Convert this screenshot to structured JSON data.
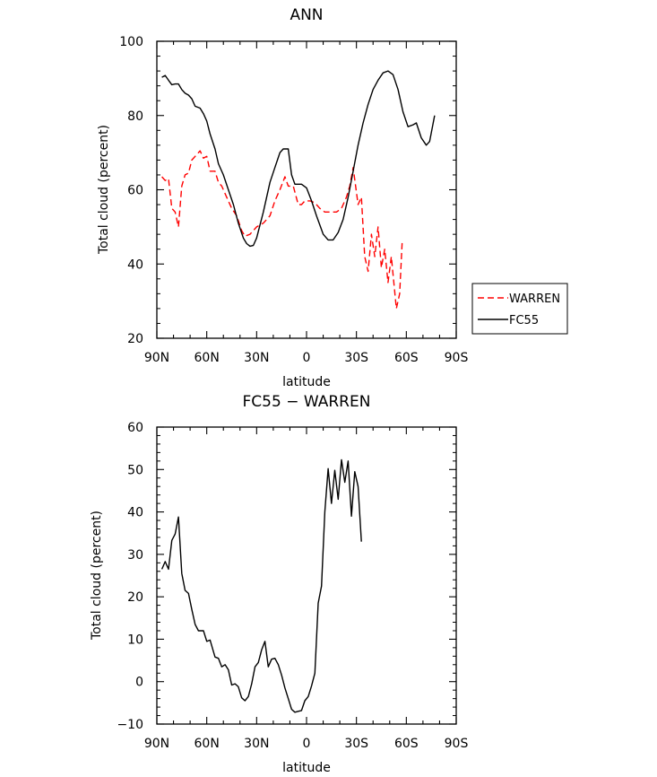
{
  "chart_data": [
    {
      "type": "line",
      "title": "ANN",
      "xlabel": "latitude",
      "ylabel": "Total cloud (percent)",
      "xlim": [
        90,
        -90
      ],
      "ylim": [
        20,
        100
      ],
      "x_tick_values": [
        90,
        60,
        30,
        0,
        -30,
        -60,
        -90
      ],
      "x_tick_labels": [
        "90N",
        "60N",
        "30N",
        "0",
        "30S",
        "60S",
        "90S"
      ],
      "y_tick_values": [
        20,
        40,
        60,
        80,
        100
      ],
      "y_tick_labels": [
        "20",
        "40",
        "60",
        "80",
        "100"
      ],
      "legend": "outside-right",
      "series": [
        {
          "name": "WARREN",
          "color": "#ff0000",
          "dash": "dashed",
          "points": [
            [
              87,
              63.5
            ],
            [
              85,
              62.5
            ],
            [
              83,
              63
            ],
            [
              81,
              55
            ],
            [
              79,
              54
            ],
            [
              77,
              50
            ],
            [
              75,
              61
            ],
            [
              73,
              64
            ],
            [
              71,
              64.5
            ],
            [
              69,
              68
            ],
            [
              67,
              69
            ],
            [
              64,
              70.5
            ],
            [
              62,
              68.5
            ],
            [
              60,
              69
            ],
            [
              58,
              65
            ],
            [
              55,
              65
            ],
            [
              53,
              62
            ],
            [
              51,
              61
            ],
            [
              48,
              58
            ],
            [
              45,
              55
            ],
            [
              42,
              53
            ],
            [
              39,
              49
            ],
            [
              37,
              47.5
            ],
            [
              34,
              48
            ],
            [
              30,
              50
            ],
            [
              26,
              51
            ],
            [
              22,
              53
            ],
            [
              19,
              57
            ],
            [
              16,
              60
            ],
            [
              13,
              63.5
            ],
            [
              11,
              61
            ],
            [
              8,
              61
            ],
            [
              5,
              56
            ],
            [
              3,
              56
            ],
            [
              1,
              57
            ],
            [
              -2,
              57
            ],
            [
              -5,
              56.5
            ],
            [
              -8,
              55
            ],
            [
              -11,
              54
            ],
            [
              -14,
              54
            ],
            [
              -18,
              54
            ],
            [
              -21,
              55
            ],
            [
              -24,
              58
            ],
            [
              -26,
              61
            ],
            [
              -28,
              66
            ],
            [
              -31,
              56
            ],
            [
              -33,
              58
            ],
            [
              -35,
              42
            ],
            [
              -37,
              38
            ],
            [
              -39,
              48
            ],
            [
              -41,
              42
            ],
            [
              -43,
              50
            ],
            [
              -45,
              39
            ],
            [
              -47,
              44
            ],
            [
              -49,
              35
            ],
            [
              -51,
              42
            ],
            [
              -54,
              28
            ],
            [
              -56,
              32
            ],
            [
              -57.5,
              46
            ]
          ]
        },
        {
          "name": "FC55",
          "color": "#000000",
          "dash": "solid",
          "points": [
            [
              87,
              90.3
            ],
            [
              85,
              90.8
            ],
            [
              83,
              89.5
            ],
            [
              81,
              88.3
            ],
            [
              79,
              88.5
            ],
            [
              77,
              88.5
            ],
            [
              75,
              87
            ],
            [
              73,
              86
            ],
            [
              71,
              85.5
            ],
            [
              69,
              84.5
            ],
            [
              67,
              82.5
            ],
            [
              64,
              82
            ],
            [
              62,
              80.5
            ],
            [
              60,
              78.5
            ],
            [
              58,
              75
            ],
            [
              55,
              71
            ],
            [
              53,
              67
            ],
            [
              50,
              64
            ],
            [
              47,
              60
            ],
            [
              44,
              56
            ],
            [
              41,
              51
            ],
            [
              38,
              47
            ],
            [
              36,
              45.5
            ],
            [
              34,
              44.8
            ],
            [
              32,
              45
            ],
            [
              30,
              47
            ],
            [
              26,
              54
            ],
            [
              22,
              62
            ],
            [
              19,
              66
            ],
            [
              16,
              70
            ],
            [
              14,
              71
            ],
            [
              11,
              71
            ],
            [
              9,
              64
            ],
            [
              7,
              61.5
            ],
            [
              5,
              61.5
            ],
            [
              3,
              61.5
            ],
            [
              0,
              60.5
            ],
            [
              -3,
              57
            ],
            [
              -6,
              53
            ],
            [
              -10,
              48
            ],
            [
              -13,
              46.5
            ],
            [
              -16,
              46.5
            ],
            [
              -19,
              48.5
            ],
            [
              -22,
              52
            ],
            [
              -25,
              58
            ],
            [
              -28,
              65
            ],
            [
              -31,
              72
            ],
            [
              -34,
              78
            ],
            [
              -37,
              83
            ],
            [
              -40,
              87
            ],
            [
              -43,
              89.5
            ],
            [
              -46,
              91.5
            ],
            [
              -49,
              92
            ],
            [
              -52,
              91
            ],
            [
              -55,
              87
            ],
            [
              -58,
              81
            ],
            [
              -61,
              77
            ],
            [
              -64,
              77.5
            ],
            [
              -66,
              78
            ],
            [
              -69,
              74
            ],
            [
              -72,
              72
            ],
            [
              -74,
              73
            ],
            [
              -77,
              80
            ]
          ]
        }
      ]
    },
    {
      "type": "line",
      "title": "FC55 − WARREN",
      "xlabel": "latitude",
      "ylabel": "Total cloud (percent)",
      "xlim": [
        90,
        -90
      ],
      "ylim": [
        -10,
        60
      ],
      "x_tick_values": [
        90,
        60,
        30,
        0,
        -30,
        -60,
        -90
      ],
      "x_tick_labels": [
        "90N",
        "60N",
        "30N",
        "0",
        "30S",
        "60S",
        "90S"
      ],
      "y_tick_values": [
        -10,
        0,
        10,
        20,
        30,
        40,
        50,
        60
      ],
      "y_tick_labels": [
        "−10",
        "0",
        "10",
        "20",
        "30",
        "40",
        "50",
        "60"
      ],
      "series": [
        {
          "color": "#000000",
          "dash": "solid",
          "points": [
            [
              87,
              26.5
            ],
            [
              85,
              28.3
            ],
            [
              83,
              26.5
            ],
            [
              81,
              33.3
            ],
            [
              79,
              34.8
            ],
            [
              77,
              38.8
            ],
            [
              75,
              25.5
            ],
            [
              73,
              21.5
            ],
            [
              71,
              20.8
            ],
            [
              69,
              17
            ],
            [
              67,
              13.5
            ],
            [
              65,
              12
            ],
            [
              62,
              12
            ],
            [
              60,
              9.5
            ],
            [
              58,
              9.8
            ],
            [
              55,
              5.8
            ],
            [
              53,
              5.5
            ],
            [
              51,
              3.5
            ],
            [
              49,
              4
            ],
            [
              47,
              2.8
            ],
            [
              45,
              -0.8
            ],
            [
              43,
              -0.5
            ],
            [
              41,
              -1.2
            ],
            [
              39,
              -3.8
            ],
            [
              37,
              -4.5
            ],
            [
              35,
              -3.5
            ],
            [
              33,
              -0.5
            ],
            [
              31,
              3.5
            ],
            [
              29,
              4.5
            ],
            [
              27,
              7.5
            ],
            [
              25,
              9.5
            ],
            [
              23,
              3.5
            ],
            [
              21,
              5.3
            ],
            [
              19,
              5.5
            ],
            [
              17,
              4
            ],
            [
              15,
              1.5
            ],
            [
              13,
              -1.5
            ],
            [
              11,
              -4
            ],
            [
              9,
              -6.5
            ],
            [
              7,
              -7.2
            ],
            [
              5,
              -7
            ],
            [
              3,
              -6.8
            ],
            [
              1,
              -4.5
            ],
            [
              -1,
              -3.5
            ],
            [
              -3,
              -1
            ],
            [
              -5,
              2
            ],
            [
              -7,
              18.5
            ],
            [
              -9,
              22.5
            ],
            [
              -11,
              40
            ],
            [
              -13,
              50.2
            ],
            [
              -15,
              42
            ],
            [
              -17,
              49.8
            ],
            [
              -19,
              43
            ],
            [
              -21,
              52.3
            ],
            [
              -23,
              47
            ],
            [
              -25,
              52
            ],
            [
              -27,
              39
            ],
            [
              -29,
              49.5
            ],
            [
              -31,
              46
            ],
            [
              -33,
              33
            ]
          ]
        }
      ]
    }
  ]
}
